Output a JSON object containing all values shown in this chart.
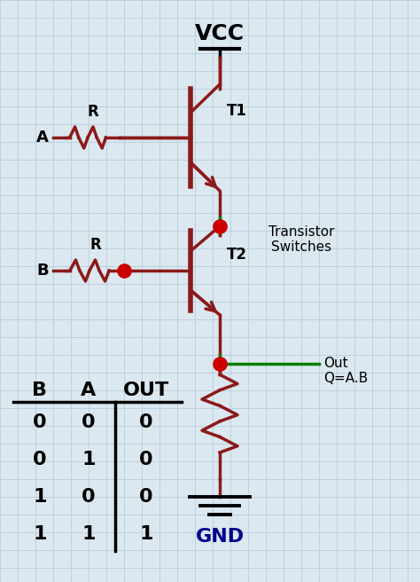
{
  "bg_color": "#dce8f0",
  "circuit_color": "#8B1A1A",
  "green_color": "#008000",
  "dot_color": "#CC0000",
  "black_color": "#000000",
  "blue_color": "#00008B",
  "gnd_bar_color": "#000000",
  "vcc_text": "VCC",
  "gnd_text": "GND",
  "t1_label": "T1",
  "t2_label": "T2",
  "transistor_switches_label": "Transistor\nSwitches",
  "out_label": "Out\nQ=A.B",
  "A_label": "A",
  "B_label": "B",
  "R1_label": "R",
  "R2_label": "R",
  "truth_table_headers": [
    "B",
    "A",
    "OUT"
  ],
  "truth_table_rows": [
    [
      0,
      0,
      0
    ],
    [
      0,
      1,
      0
    ],
    [
      1,
      0,
      0
    ],
    [
      1,
      1,
      1
    ]
  ]
}
